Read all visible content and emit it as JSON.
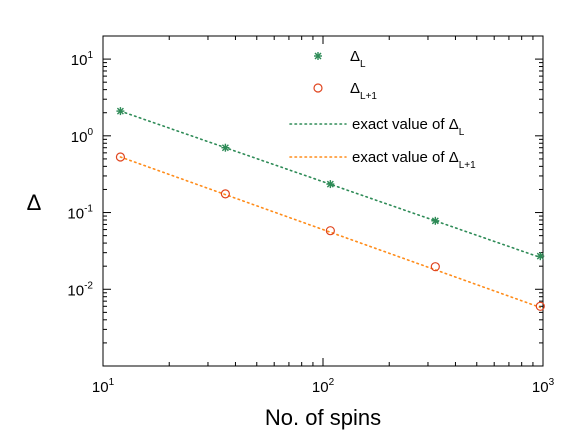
{
  "chart_data": {
    "type": "scatter",
    "xlabel": "No. of spins",
    "ylabel": "Δ",
    "xscale": "log",
    "yscale": "log",
    "xlim": [
      10,
      1000
    ],
    "ylim": [
      0.001,
      20
    ],
    "xticks": [
      {
        "value": 10,
        "base": "10",
        "exp": "1"
      },
      {
        "value": 100,
        "base": "10",
        "exp": "2"
      },
      {
        "value": 1000,
        "base": "10",
        "exp": "3"
      }
    ],
    "yticks": [
      {
        "value": 10,
        "base": "10",
        "exp": "1"
      },
      {
        "value": 1,
        "base": "10",
        "exp": "0"
      },
      {
        "value": 0.1,
        "base": "10",
        "exp": "-1"
      },
      {
        "value": 0.01,
        "base": "10",
        "exp": "-2"
      }
    ],
    "grid": false,
    "legend_position": "top-right",
    "series": [
      {
        "name": "Δ",
        "name_sub": "L",
        "style": "marker",
        "marker": "asterisk",
        "color": "#2e8b57",
        "x": [
          12,
          36,
          108,
          324,
          972
        ],
        "y": [
          2.1,
          0.7,
          0.235,
          0.078,
          0.027
        ]
      },
      {
        "name": "Δ",
        "name_sub": "L+1",
        "style": "marker",
        "marker": "circle",
        "color": "#e0451f",
        "x": [
          12,
          36,
          108,
          324,
          972
        ],
        "y": [
          0.53,
          0.175,
          0.058,
          0.0197,
          0.006
        ]
      },
      {
        "name": "exact value of Δ",
        "name_sub": "L",
        "style": "dotted-line",
        "color": "#2e8b57",
        "x": [
          12,
          972
        ],
        "y": [
          2.1,
          0.026
        ]
      },
      {
        "name": "exact value of Δ",
        "name_sub": "L+1",
        "style": "dotted-line",
        "color": "#ff8c1a",
        "x": [
          12,
          972
        ],
        "y": [
          0.53,
          0.0058
        ]
      }
    ]
  }
}
